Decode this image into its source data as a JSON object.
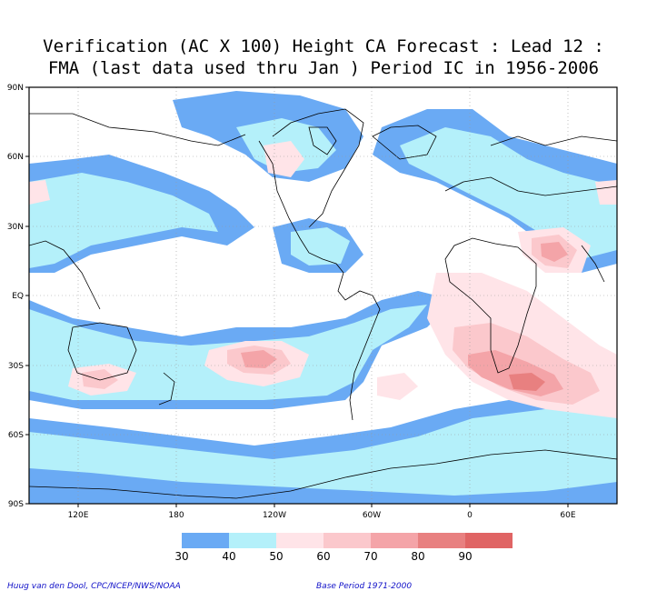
{
  "title": {
    "line1": "Verification (AC X 100) Height CA Forecast : Lead 12 :",
    "line2": "FMA (last data used thru Jan ) Period IC in 1956-2006"
  },
  "axes": {
    "y_labels": [
      "90N",
      "60N",
      "30N",
      "EQ",
      "30S",
      "60S",
      "90S"
    ],
    "x_labels": [
      "120E",
      "180",
      "120W",
      "60W",
      "0",
      "60E"
    ]
  },
  "legend": {
    "labels": [
      "30",
      "40",
      "50",
      "60",
      "70",
      "80",
      "90"
    ],
    "colors": [
      "#6aaaf4",
      "#b4f0fa",
      "#ffe4e8",
      "#fbc8cc",
      "#f4a4a8",
      "#e88080",
      "#e06464"
    ]
  },
  "footer": {
    "left": "Huug van den Dool, CPC/NCEP/NWS/NOAA",
    "right": "Base Period 1971-2000"
  }
}
